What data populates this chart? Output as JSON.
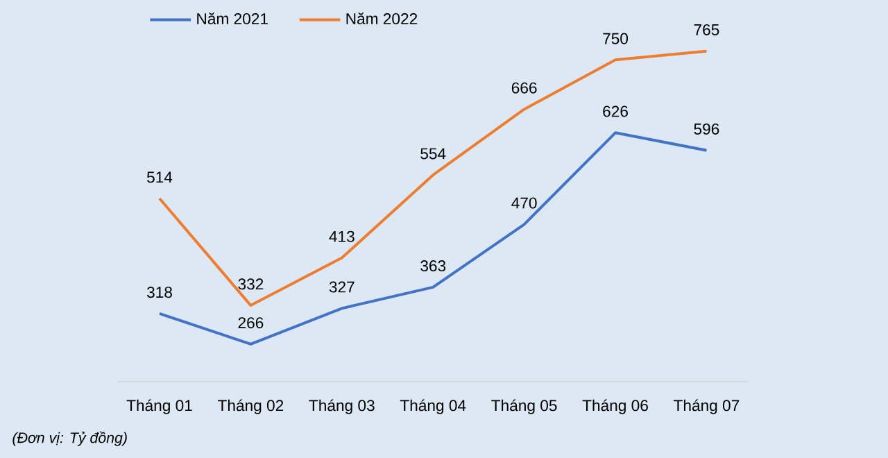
{
  "chart_data": {
    "type": "line",
    "categories": [
      "Tháng 01",
      "Tháng 02",
      "Tháng 03",
      "Tháng 04",
      "Tháng 05",
      "Tháng 06",
      "Tháng 07"
    ],
    "series": [
      {
        "name": "Năm 2021",
        "color": "#4472c4",
        "values": [
          318,
          266,
          327,
          363,
          470,
          626,
          596
        ]
      },
      {
        "name": "Năm 2022",
        "color": "#ed7d31",
        "values": [
          514,
          332,
          413,
          554,
          666,
          750,
          765
        ]
      }
    ],
    "data_labels": true,
    "legend": "top",
    "grid": false,
    "marker": "none",
    "line_style": "solid",
    "annotations": [
      "(Đơn vị: Tỷ đồng)"
    ]
  }
}
